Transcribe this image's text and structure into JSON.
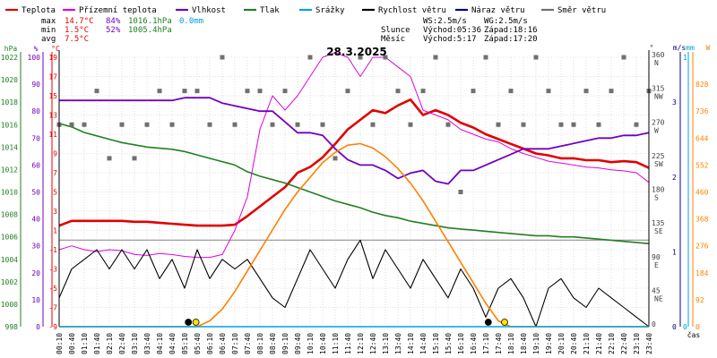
{
  "colors": {
    "teplota": "#e00000",
    "prizemni": "#e000e0",
    "vlhkost": "#7000c0",
    "tlak": "#208020",
    "srazky": "#00a0e0",
    "rychlost": "#000000",
    "naraz": "#000080",
    "smer": "#707070",
    "slunce": "#ff8000",
    "grid": "#c8c8c8"
  },
  "legend": [
    {
      "label": "Teplota",
      "color": "#e00000"
    },
    {
      "label": "Přízemní teplota",
      "color": "#e000e0"
    },
    {
      "label": "Vlhkost",
      "color": "#7000c0"
    },
    {
      "label": "Tlak",
      "color": "#208020"
    },
    {
      "label": "Srážky",
      "color": "#00a0e0"
    },
    {
      "label": "Rychlost větru",
      "color": "#000000"
    },
    {
      "label": "Náraz větru",
      "color": "#000080"
    },
    {
      "label": "Směr větru",
      "color": "#707070"
    }
  ],
  "stats": {
    "max": {
      "label": "max",
      "temp": "14.7°C",
      "hum": "84%",
      "press": "1016.1hPa",
      "rain": "0.0mm"
    },
    "min": {
      "label": "min",
      "temp": "1.5°C",
      "hum": "52%",
      "press": "1005.4hPa"
    },
    "avg": {
      "label": "avg",
      "temp": "7.5°C"
    }
  },
  "info": {
    "ws": "WS:2.5m/s",
    "wg": "WG:2.5m/s",
    "slunce_label": "Slunce",
    "slunce_vychod": "Východ:05:36",
    "slunce_zapad": "Západ:18:16",
    "mesic_label": "Měsíc",
    "mesic_vychod": "Východ:5:17",
    "mesic_zapad": "Západ:17:20"
  },
  "chart_data": {
    "type": "line",
    "title": "28.3.2025",
    "x_labels": [
      "00:10",
      "00:40",
      "01:10",
      "01:40",
      "02:10",
      "02:40",
      "03:10",
      "03:40",
      "04:10",
      "04:40",
      "05:10",
      "05:40",
      "06:10",
      "06:40",
      "07:10",
      "07:40",
      "08:10",
      "08:40",
      "09:10",
      "09:40",
      "10:10",
      "10:40",
      "11:10",
      "11:40",
      "12:10",
      "12:40",
      "13:10",
      "13:40",
      "14:10",
      "14:40",
      "15:10",
      "15:40",
      "16:10",
      "16:40",
      "17:10",
      "17:40",
      "18:10",
      "18:40",
      "19:10",
      "19:40",
      "20:10",
      "20:40",
      "21:10",
      "21:40",
      "22:10",
      "22:40",
      "23:10",
      "23:40"
    ],
    "xlabel": "čas",
    "axes": {
      "hpa": {
        "label": "hPa",
        "ticks": [
          998,
          1000,
          1002,
          1004,
          1006,
          1008,
          1010,
          1012,
          1014,
          1016,
          1018,
          1020,
          1022
        ]
      },
      "pct": {
        "label": "%",
        "ticks": [
          0,
          10,
          20,
          30,
          40,
          50,
          60,
          70,
          80,
          90,
          100
        ]
      },
      "temp": {
        "label": "°C",
        "ticks": [
          -9,
          -7,
          -5,
          -3,
          -1,
          1,
          3,
          5,
          7,
          9,
          11,
          13,
          15,
          17,
          19
        ]
      },
      "dir": {
        "label": "°",
        "ticks": [
          0,
          45,
          90,
          135,
          180,
          225,
          270,
          315,
          360
        ],
        "names": [
          "",
          "NE",
          "E",
          "SE",
          "S",
          "SW",
          "W",
          "NW",
          "N"
        ]
      },
      "wind": {
        "label": "m/s",
        "ticks": [
          0,
          1,
          2,
          3
        ]
      },
      "rain": {
        "label": "mm",
        "ticks": [
          0,
          1
        ]
      },
      "solar": {
        "label": "W",
        "ticks": [
          0,
          92,
          184,
          276,
          368,
          460,
          552,
          644,
          736,
          828
        ]
      }
    },
    "series": [
      {
        "name": "Teplota",
        "key": "temp",
        "axis": "temp",
        "values": [
          1.5,
          2.0,
          2.0,
          2.0,
          2.0,
          2.0,
          1.9,
          1.9,
          1.8,
          1.7,
          1.6,
          1.5,
          1.5,
          1.5,
          1.6,
          2.5,
          3.5,
          4.5,
          5.5,
          7.0,
          7.6,
          8.6,
          10.0,
          11.5,
          12.5,
          13.5,
          13.2,
          14.0,
          14.6,
          13.0,
          13.5,
          13.0,
          12.2,
          11.7,
          11.0,
          10.5,
          10.0,
          9.5,
          9.0,
          8.8,
          8.5,
          8.5,
          8.3,
          8.3,
          8.1,
          8.2,
          8.1,
          7.5
        ]
      },
      {
        "name": "Přízemní teplota",
        "key": "prizemni",
        "axis": "temp",
        "values": [
          -1.0,
          -0.6,
          -1.0,
          -1.2,
          -1.0,
          -1.1,
          -1.5,
          -1.6,
          -1.4,
          -1.5,
          -1.7,
          -1.8,
          -1.8,
          -1.5,
          1.0,
          4.5,
          11.5,
          15.0,
          13.5,
          15.0,
          17.0,
          19.0,
          19.5,
          19.0,
          17.0,
          19.0,
          19.0,
          18.0,
          17.0,
          13.5,
          13.0,
          12.5,
          11.5,
          11.0,
          10.5,
          10.2,
          9.5,
          9.0,
          8.6,
          8.2,
          8.0,
          7.8,
          7.6,
          7.5,
          7.3,
          7.2,
          7.0,
          6.0
        ]
      },
      {
        "name": "Vlhkost",
        "key": "vlhkost",
        "axis": "pct",
        "values": [
          84,
          84,
          84,
          84,
          84,
          84,
          84,
          84,
          84,
          84,
          85,
          85,
          85,
          83,
          82,
          81,
          80,
          80,
          76,
          72,
          72,
          71,
          66,
          62,
          60,
          60,
          58,
          55,
          57,
          58,
          54,
          53,
          58,
          58,
          60,
          62,
          64,
          66,
          66,
          66,
          67,
          68,
          69,
          70,
          70,
          71,
          71,
          72
        ]
      },
      {
        "name": "Tlak",
        "key": "tlak",
        "axis": "hpa",
        "values": [
          1016.1,
          1015.8,
          1015.3,
          1015.0,
          1014.7,
          1014.4,
          1014.2,
          1014.0,
          1013.9,
          1013.8,
          1013.6,
          1013.3,
          1013.0,
          1012.7,
          1012.4,
          1011.8,
          1011.4,
          1011.1,
          1010.8,
          1010.4,
          1010.0,
          1009.6,
          1009.2,
          1008.9,
          1008.6,
          1008.2,
          1007.9,
          1007.7,
          1007.4,
          1007.2,
          1007.0,
          1006.8,
          1006.7,
          1006.6,
          1006.5,
          1006.4,
          1006.3,
          1006.2,
          1006.1,
          1006.1,
          1006.0,
          1006.0,
          1005.9,
          1005.8,
          1005.7,
          1005.6,
          1005.5,
          1005.4
        ]
      },
      {
        "name": "Rychlost větru",
        "key": "rychlost",
        "axis": "temp",
        "values": [
          -6,
          -3,
          -2,
          -1,
          -3,
          -1,
          -3,
          -1,
          -4,
          -2,
          -5,
          -1,
          -4,
          -2,
          -3,
          -2,
          -4,
          -6,
          -7,
          -4,
          -1,
          -3,
          -5,
          -2,
          0,
          -4,
          -1,
          -3,
          -5,
          -2,
          -4,
          -6,
          -3,
          -5,
          -8,
          -5,
          -4,
          -6,
          -9,
          -5,
          -4,
          -6,
          -7,
          -5,
          -6,
          -7,
          -8,
          -9
        ]
      },
      {
        "name": "Směr větru",
        "key": "smer",
        "axis": "dir",
        "values": [
          270,
          270,
          270,
          315,
          225,
          270,
          225,
          270,
          315,
          270,
          315,
          315,
          270,
          360,
          270,
          315,
          315,
          270,
          315,
          270,
          360,
          270,
          225,
          315,
          360,
          270,
          360,
          315,
          270,
          315,
          360,
          270,
          180,
          315,
          360,
          270,
          315,
          270,
          360,
          315,
          270,
          270,
          315,
          270,
          315,
          360,
          270,
          315
        ]
      },
      {
        "name": "Slunce",
        "key": "slunce",
        "axis": "solar",
        "values": [
          0,
          0,
          0,
          0,
          0,
          0,
          0,
          0,
          0,
          0,
          0,
          0,
          20,
          60,
          120,
          190,
          260,
          330,
          400,
          460,
          510,
          560,
          595,
          620,
          625,
          610,
          580,
          540,
          490,
          430,
          360,
          290,
          220,
          150,
          80,
          20,
          0,
          0,
          0,
          0,
          0,
          0,
          0,
          0,
          0,
          0,
          0,
          0
        ]
      }
    ],
    "markers": [
      {
        "kind": "moonrise",
        "x_index": 10.3
      },
      {
        "kind": "sunrise",
        "x_index": 10.9
      },
      {
        "kind": "moonset",
        "x_index": 34.2
      },
      {
        "kind": "sunset",
        "x_index": 35.5
      }
    ]
  }
}
